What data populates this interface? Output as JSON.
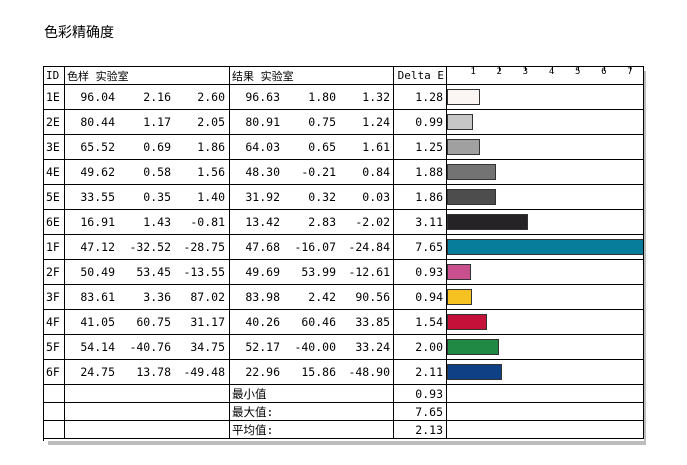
{
  "title": "色彩精确度",
  "headers": {
    "id": "ID",
    "sample": "色样 实验室",
    "result": "结果 实验室",
    "delta": "Delta E"
  },
  "chart_data": {
    "type": "bar",
    "orientation": "horizontal",
    "x_ticks": [
      "1",
      "2",
      "3",
      "4",
      "5",
      "6",
      "7"
    ],
    "xlim": [
      0,
      7.5
    ],
    "rows": [
      {
        "id": "1E",
        "sample": [
          "96.04",
          "2.16",
          "2.60"
        ],
        "result": [
          "96.63",
          "1.80",
          "1.32"
        ],
        "delta": "1.28",
        "value": 1.28,
        "color": "#fbf6f3"
      },
      {
        "id": "2E",
        "sample": [
          "80.44",
          "1.17",
          "2.05"
        ],
        "result": [
          "80.91",
          "0.75",
          "1.24"
        ],
        "delta": "0.99",
        "value": 0.99,
        "color": "#c7c7c7"
      },
      {
        "id": "3E",
        "sample": [
          "65.52",
          "0.69",
          "1.86"
        ],
        "result": [
          "64.03",
          "0.65",
          "1.61"
        ],
        "delta": "1.25",
        "value": 1.25,
        "color": "#a0a0a0"
      },
      {
        "id": "4E",
        "sample": [
          "49.62",
          "0.58",
          "1.56"
        ],
        "result": [
          "48.30",
          "-0.21",
          "0.84"
        ],
        "delta": "1.88",
        "value": 1.88,
        "color": "#737373"
      },
      {
        "id": "5E",
        "sample": [
          "33.55",
          "0.35",
          "1.40"
        ],
        "result": [
          "31.92",
          "0.32",
          "0.03"
        ],
        "delta": "1.86",
        "value": 1.86,
        "color": "#4d4d4d"
      },
      {
        "id": "6E",
        "sample": [
          "16.91",
          "1.43",
          "-0.81"
        ],
        "result": [
          "13.42",
          "2.83",
          "-2.02"
        ],
        "delta": "3.11",
        "value": 3.11,
        "color": "#262326"
      },
      {
        "id": "1F",
        "sample": [
          "47.12",
          "-32.52",
          "-28.75"
        ],
        "result": [
          "47.68",
          "-16.07",
          "-24.84"
        ],
        "delta": "7.65",
        "value": 7.65,
        "color": "#087d9b"
      },
      {
        "id": "2F",
        "sample": [
          "50.49",
          "53.45",
          "-13.55"
        ],
        "result": [
          "49.69",
          "53.99",
          "-12.61"
        ],
        "delta": "0.93",
        "value": 0.93,
        "color": "#c9508e"
      },
      {
        "id": "3F",
        "sample": [
          "83.61",
          "3.36",
          "87.02"
        ],
        "result": [
          "83.98",
          "2.42",
          "90.56"
        ],
        "delta": "0.94",
        "value": 0.94,
        "color": "#f6c221"
      },
      {
        "id": "4F",
        "sample": [
          "41.05",
          "60.75",
          "31.17"
        ],
        "result": [
          "40.26",
          "60.46",
          "33.85"
        ],
        "delta": "1.54",
        "value": 1.54,
        "color": "#c4113a"
      },
      {
        "id": "5F",
        "sample": [
          "54.14",
          "-40.76",
          "34.75"
        ],
        "result": [
          "52.17",
          "-40.00",
          "33.24"
        ],
        "delta": "2.00",
        "value": 2.0,
        "color": "#208a45"
      },
      {
        "id": "6F",
        "sample": [
          "24.75",
          "13.78",
          "-49.48"
        ],
        "result": [
          "22.96",
          "15.86",
          "-48.90"
        ],
        "delta": "2.11",
        "value": 2.11,
        "color": "#0f3f84"
      }
    ]
  },
  "summary": [
    {
      "label": "最小值",
      "value": "0.93"
    },
    {
      "label": "最大值:",
      "value": "7.65"
    },
    {
      "label": "平均值:",
      "value": "2.13"
    }
  ]
}
